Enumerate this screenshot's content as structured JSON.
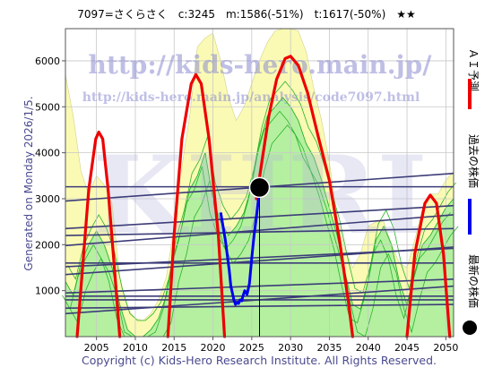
{
  "header": {
    "title": "7097=さくらさく　c:3245　m:1586(-51%)　t:1617(-50%)　★★"
  },
  "side_label": "Generated on Monday 2026/1/5.",
  "copyright": "Copyright (c) Kids-Hero Research Institute. All Rights Reserved.",
  "watermark": {
    "url1": "http://kids-hero.main.jp/",
    "url2": "http://kids-hero.main.jp/analysis/code7097.html",
    "big": "KHRI"
  },
  "legend": {
    "ai_forecast": "ＡＩ予測",
    "past_price": "過去の株価",
    "latest_price": "最新の株価"
  },
  "colors": {
    "ai_forecast": "#ee0000",
    "past_price": "#0000ee",
    "latest_marker": "#000000",
    "light_area": "#fafab4",
    "green_area": "#b4f0a0",
    "green_line": "#28b428",
    "trend_line": "#3c3c78"
  },
  "chart_data": {
    "type": "line",
    "xlim": [
      2001,
      2051
    ],
    "ylim": [
      0,
      6700
    ],
    "xticks": [
      2005,
      2010,
      2015,
      2020,
      2025,
      2030,
      2035,
      2040,
      2045,
      2050
    ],
    "yticks": [
      1000,
      2000,
      3000,
      4000,
      5000,
      6000
    ],
    "grid": true,
    "latest": {
      "x": 2026.0,
      "y": 3245
    },
    "series": [
      {
        "name": "ＡＩ予測",
        "segments": [
          [
            [
              2002.5,
              0
            ],
            [
              2003.2,
              1500
            ],
            [
              2004.0,
              3200
            ],
            [
              2004.9,
              4300
            ],
            [
              2005.3,
              4450
            ],
            [
              2005.8,
              4300
            ],
            [
              2006.5,
              3200
            ],
            [
              2007.3,
              1500
            ],
            [
              2008.0,
              0
            ]
          ],
          [
            [
              2014.2,
              0
            ],
            [
              2015.0,
              2200
            ],
            [
              2016.0,
              4300
            ],
            [
              2017.2,
              5500
            ],
            [
              2017.8,
              5700
            ],
            [
              2018.5,
              5500
            ],
            [
              2019.5,
              4300
            ],
            [
              2020.7,
              2200
            ],
            [
              2021.5,
              0
            ]
          ],
          [
            [
              2025.6,
              3000
            ],
            [
              2026.3,
              3800
            ],
            [
              2027.2,
              4800
            ],
            [
              2028.2,
              5600
            ],
            [
              2029.3,
              6050
            ],
            [
              2030.0,
              6100
            ],
            [
              2031.0,
              5900
            ],
            [
              2032.2,
              5300
            ],
            [
              2033.5,
              4400
            ],
            [
              2035.0,
              3400
            ],
            [
              2036.3,
              2100
            ],
            [
              2037.5,
              700
            ],
            [
              2038.0,
              0
            ]
          ],
          [
            [
              2045.0,
              0
            ],
            [
              2046.0,
              1800
            ],
            [
              2047.3,
              2900
            ],
            [
              2048.0,
              3080
            ],
            [
              2048.8,
              2900
            ],
            [
              2049.7,
              1800
            ],
            [
              2050.5,
              0
            ]
          ]
        ]
      },
      {
        "name": "過去の株価",
        "points": [
          [
            2021.0,
            2700
          ],
          [
            2021.3,
            2400
          ],
          [
            2021.6,
            2100
          ],
          [
            2021.9,
            1700
          ],
          [
            2022.1,
            1450
          ],
          [
            2022.3,
            1100
          ],
          [
            2022.5,
            950
          ],
          [
            2022.7,
            800
          ],
          [
            2022.9,
            700
          ],
          [
            2023.1,
            740
          ],
          [
            2023.3,
            720
          ],
          [
            2023.5,
            800
          ],
          [
            2023.7,
            780
          ],
          [
            2023.9,
            900
          ],
          [
            2024.1,
            1000
          ],
          [
            2024.4,
            920
          ],
          [
            2024.7,
            1150
          ],
          [
            2025.0,
            1700
          ],
          [
            2025.3,
            2200
          ],
          [
            2025.6,
            2600
          ],
          [
            2025.8,
            2900
          ],
          [
            2026.0,
            3245
          ]
        ]
      }
    ],
    "areas": {
      "light": [
        [
          2001,
          0
        ],
        [
          2001,
          5700
        ],
        [
          2002,
          4800
        ],
        [
          2003,
          3600
        ],
        [
          2004,
          3100
        ],
        [
          2005,
          3500
        ],
        [
          2006,
          3300
        ],
        [
          2007,
          2900
        ],
        [
          2008,
          1300
        ],
        [
          2009,
          600
        ],
        [
          2010,
          400
        ],
        [
          2011,
          350
        ],
        [
          2012,
          500
        ],
        [
          2013,
          800
        ],
        [
          2014,
          1300
        ],
        [
          2015,
          2400
        ],
        [
          2016,
          3700
        ],
        [
          2017,
          4800
        ],
        [
          2018,
          6300
        ],
        [
          2019,
          6500
        ],
        [
          2020,
          6600
        ],
        [
          2021,
          6000
        ],
        [
          2022,
          5200
        ],
        [
          2023,
          4700
        ],
        [
          2024,
          5000
        ],
        [
          2025,
          5500
        ],
        [
          2026,
          6000
        ],
        [
          2027,
          6400
        ],
        [
          2028,
          6650
        ],
        [
          2029,
          6700
        ],
        [
          2030,
          6700
        ],
        [
          2031,
          6650
        ],
        [
          2032,
          6200
        ],
        [
          2033,
          5400
        ],
        [
          2034,
          4700
        ],
        [
          2035,
          3800
        ],
        [
          2036,
          2600
        ],
        [
          2037,
          1900
        ],
        [
          2038,
          1500
        ],
        [
          2039,
          1800
        ],
        [
          2040,
          2400
        ],
        [
          2041,
          2500
        ],
        [
          2042,
          2500
        ],
        [
          2043,
          2000
        ],
        [
          2044,
          1600
        ],
        [
          2045,
          1500
        ],
        [
          2046,
          2100
        ],
        [
          2047,
          2800
        ],
        [
          2048,
          3100
        ],
        [
          2049,
          3100
        ],
        [
          2050,
          3400
        ],
        [
          2051,
          3600
        ],
        [
          2051,
          0
        ]
      ],
      "green": [
        [
          2001,
          0
        ],
        [
          2001,
          1200
        ],
        [
          2002,
          900
        ],
        [
          2003,
          1600
        ],
        [
          2004,
          2000
        ],
        [
          2005,
          2300
        ],
        [
          2006,
          2000
        ],
        [
          2007,
          1500
        ],
        [
          2008,
          700
        ],
        [
          2009,
          150
        ],
        [
          2010,
          0
        ],
        [
          2011,
          0
        ],
        [
          2012,
          150
        ],
        [
          2013,
          400
        ],
        [
          2014,
          900
        ],
        [
          2015,
          1800
        ],
        [
          2016,
          2400
        ],
        [
          2017,
          3200
        ],
        [
          2018,
          3500
        ],
        [
          2019,
          4000
        ],
        [
          2020,
          3000
        ],
        [
          2021,
          2500
        ],
        [
          2022,
          2200
        ],
        [
          2023,
          2400
        ],
        [
          2024,
          2700
        ],
        [
          2025,
          3300
        ],
        [
          2026,
          4200
        ],
        [
          2027,
          4800
        ],
        [
          2028,
          5000
        ],
        [
          2029,
          5200
        ],
        [
          2030,
          5000
        ],
        [
          2031,
          4700
        ],
        [
          2032,
          4200
        ],
        [
          2033,
          3900
        ],
        [
          2034,
          3400
        ],
        [
          2035,
          2800
        ],
        [
          2036,
          2200
        ],
        [
          2037,
          1400
        ],
        [
          2038,
          700
        ],
        [
          2039,
          600
        ],
        [
          2040,
          1200
        ],
        [
          2041,
          2100
        ],
        [
          2042,
          2400
        ],
        [
          2043,
          2000
        ],
        [
          2044,
          1200
        ],
        [
          2045,
          700
        ],
        [
          2046,
          1400
        ],
        [
          2047,
          2000
        ],
        [
          2048,
          2200
        ],
        [
          2049,
          2500
        ],
        [
          2050,
          2800
        ],
        [
          2051,
          3000
        ],
        [
          2051,
          0
        ]
      ]
    },
    "trend_lines": [
      [
        [
          2001,
          2950
        ],
        [
          2051,
          3550
        ]
      ],
      [
        [
          2001,
          3260
        ],
        [
          2051,
          3260
        ]
      ],
      [
        [
          2001,
          2350
        ],
        [
          2051,
          2850
        ]
      ],
      [
        [
          2001,
          1980
        ],
        [
          2051,
          2650
        ]
      ],
      [
        [
          2001,
          2200
        ],
        [
          2051,
          2350
        ]
      ],
      [
        [
          2001,
          1350
        ],
        [
          2051,
          1950
        ]
      ],
      [
        [
          2001,
          1520
        ],
        [
          2051,
          1920
        ]
      ],
      [
        [
          2001,
          1600
        ],
        [
          2051,
          1600
        ]
      ],
      [
        [
          2001,
          950
        ],
        [
          2051,
          1250
        ]
      ],
      [
        [
          2001,
          880
        ],
        [
          2051,
          880
        ]
      ],
      [
        [
          2001,
          500
        ],
        [
          2051,
          1100
        ]
      ],
      [
        [
          2001,
          620
        ],
        [
          2051,
          700
        ]
      ],
      [
        [
          2001,
          800
        ],
        [
          2051,
          800
        ]
      ]
    ]
  }
}
